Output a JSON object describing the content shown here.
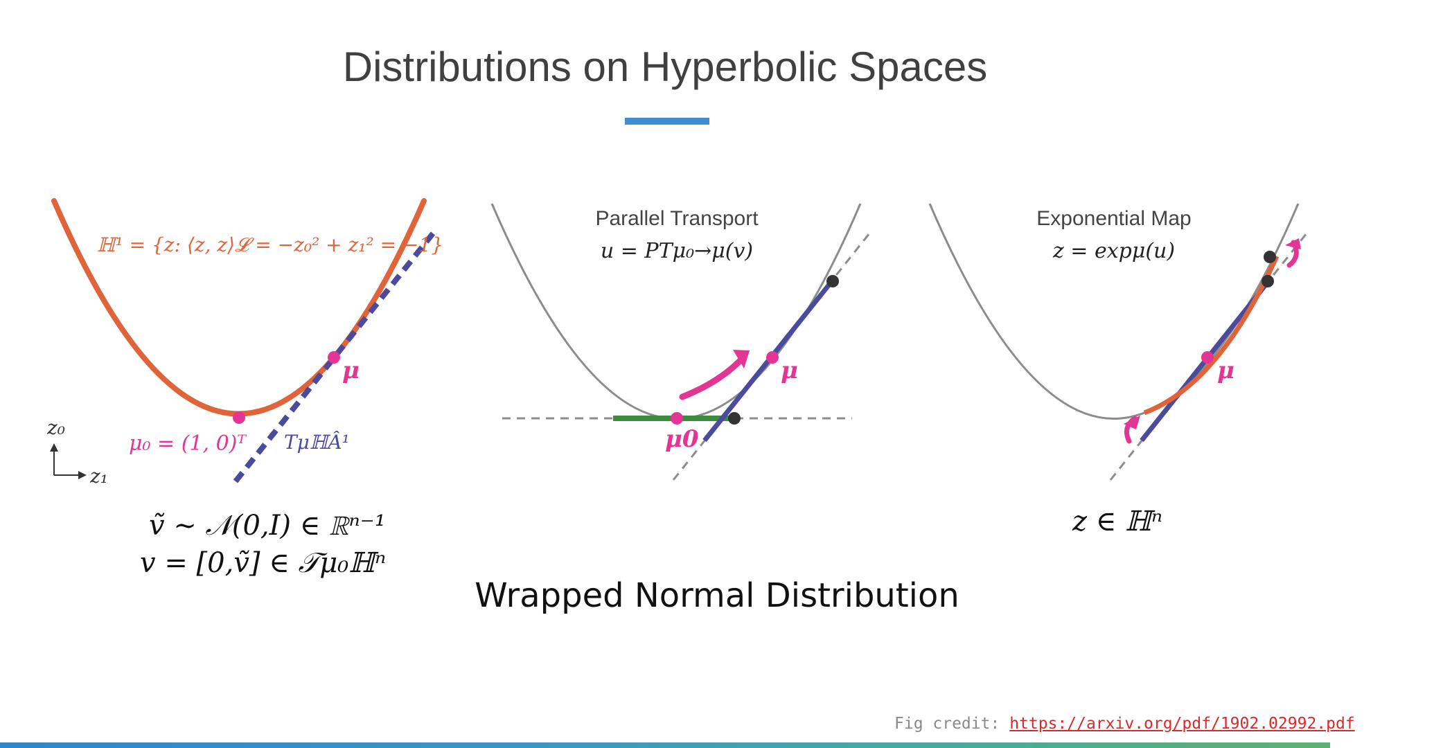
{
  "title": "Distributions on Hyperbolic Spaces",
  "subtitle": "Wrapped Normal Distribution",
  "colors": {
    "accent_rule": "#3d8fd1",
    "hyperboloid_orange": "#e0643a",
    "tangent_purple": "#4b4a9c",
    "point_pink": "#e33594",
    "green_segment": "#3d8b3d",
    "gray_curve": "#8c8c8c"
  },
  "panel_left": {
    "hyperboloid_equation": "ℍ¹ = {z: ⟨z, z⟩𝓛 = −z₀² + z₁² = −1}",
    "point_mu_label": "μ",
    "point_mu0_label": "μ₀ = (1, 0)ᵀ",
    "tangent_label": "TμℍÂ¹",
    "axis_y_label": "z₀",
    "axis_x_label": "z₁",
    "formula_line1": "ṽ ∼ 𝒩(0,I) ∈ ℝⁿ⁻¹",
    "formula_line2": "v = [0,ṽ] ∈ 𝒯μ₀ℍⁿ"
  },
  "panel_middle": {
    "heading": "Parallel Transport",
    "formula": "u = PTμ₀→μ(v)",
    "point_mu_label": "μ",
    "point_mu0_label": "μ0"
  },
  "panel_right": {
    "heading": "Exponential Map",
    "formula": "z = expμ(u)",
    "point_mu_label": "μ",
    "result_formula": "z ∈ ℍⁿ"
  },
  "credit": {
    "label": "Fig credit:",
    "link_text": "https://arxiv.org/pdf/1902.02992.pdf"
  }
}
